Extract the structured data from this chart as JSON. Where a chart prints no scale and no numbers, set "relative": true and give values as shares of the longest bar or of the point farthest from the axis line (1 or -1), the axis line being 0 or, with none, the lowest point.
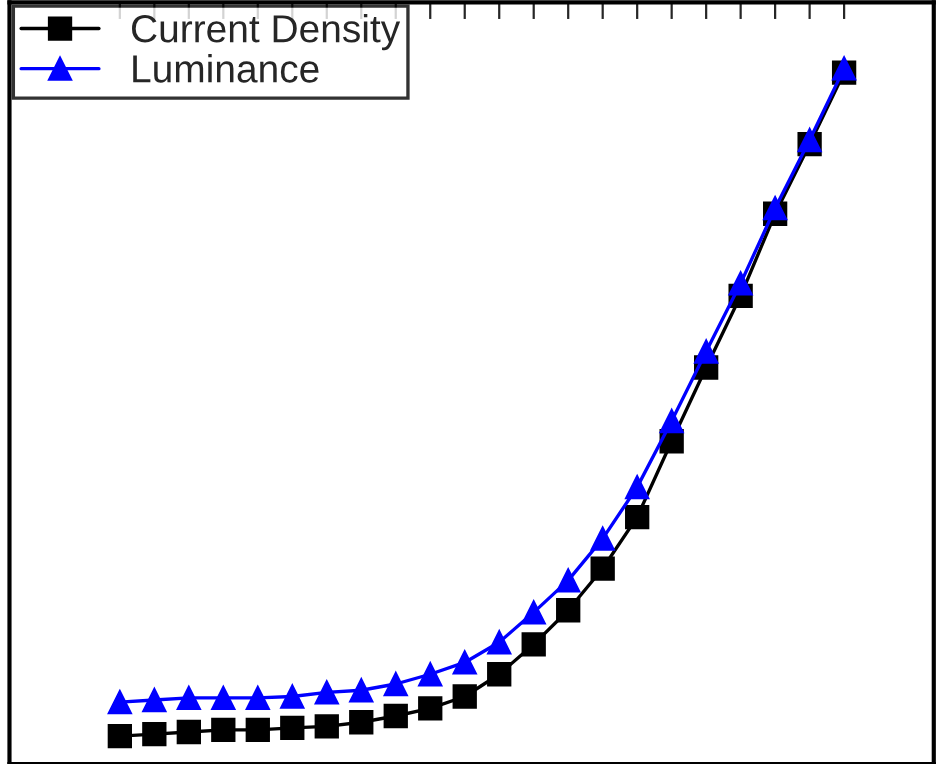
{
  "chart_data": {
    "type": "line",
    "relative": true,
    "grid": false,
    "legend": "top left",
    "categories": [
      null,
      null,
      null,
      null,
      null,
      null,
      null,
      null,
      null,
      null,
      null,
      null,
      null,
      null,
      null,
      null,
      null,
      null,
      null,
      null,
      null,
      null
    ],
    "series": [
      {
        "name": "Current Density",
        "color": "#000000",
        "marker": "square",
        "values": [
          0.04,
          0.043,
          0.046,
          0.049,
          0.049,
          0.052,
          0.054,
          0.06,
          0.069,
          0.08,
          0.097,
          0.129,
          0.172,
          0.221,
          0.281,
          0.355,
          0.464,
          0.57,
          0.673,
          0.791,
          0.891,
          0.994
        ]
      },
      {
        "name": "Luminance",
        "color": "#0000ff",
        "marker": "triangle",
        "values": [
          0.089,
          0.092,
          0.095,
          0.095,
          0.095,
          0.097,
          0.103,
          0.106,
          0.115,
          0.129,
          0.146,
          0.175,
          0.218,
          0.264,
          0.324,
          0.398,
          0.493,
          0.593,
          0.691,
          0.799,
          0.897,
          1.0
        ]
      }
    ]
  }
}
